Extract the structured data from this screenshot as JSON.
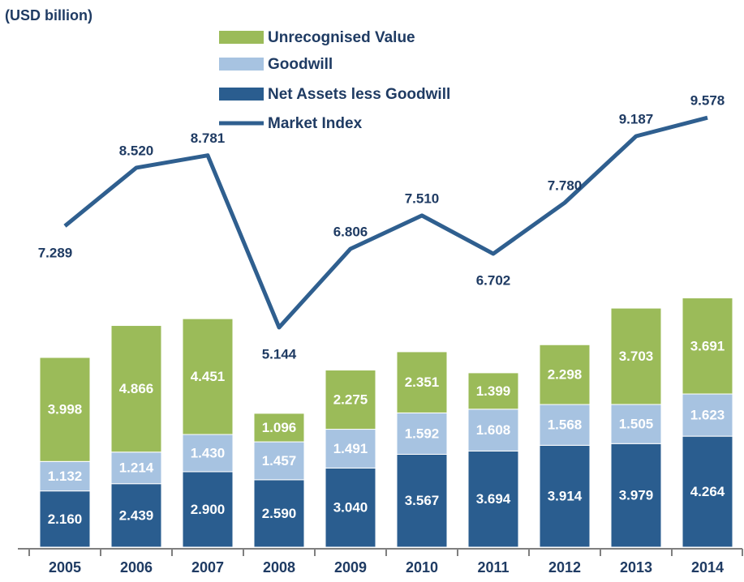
{
  "chart_data": {
    "type": "bar",
    "stacked": true,
    "subtitle": "(USD billion)",
    "categories": [
      "2005",
      "2006",
      "2007",
      "2008",
      "2009",
      "2010",
      "2011",
      "2012",
      "2013",
      "2014"
    ],
    "ylim": [
      0,
      20
    ],
    "y2lim": [
      0.5,
      11.5
    ],
    "series": [
      {
        "name": "Net Assets less Goodwill",
        "color": "#2a5d8f",
        "values": [
          2.16,
          2.439,
          2.9,
          2.59,
          3.04,
          3.567,
          3.694,
          3.914,
          3.979,
          4.264
        ],
        "value_labels": [
          "2.160",
          "2.439",
          "2.900",
          "2.590",
          "3.040",
          "3.567",
          "3.694",
          "3.914",
          "3.979",
          "4.264"
        ]
      },
      {
        "name": "Goodwill",
        "color": "#a7c3e1",
        "values": [
          1.132,
          1.214,
          1.43,
          1.457,
          1.491,
          1.592,
          1.608,
          1.568,
          1.505,
          1.623
        ],
        "value_labels": [
          "1.132",
          "1.214",
          "1.430",
          "1.457",
          "1.491",
          "1.592",
          "1.608",
          "1.568",
          "1.505",
          "1.623"
        ]
      },
      {
        "name": "Unrecognised Value",
        "color": "#9bbb59",
        "values": [
          3.998,
          4.866,
          4.451,
          1.096,
          2.275,
          2.351,
          1.399,
          2.298,
          3.703,
          3.691
        ],
        "value_labels": [
          "3.998",
          "4.866",
          "4.451",
          "1.096",
          "2.275",
          "2.351",
          "1.399",
          "2.298",
          "3.703",
          "3.691"
        ]
      },
      {
        "name": "Market Index",
        "type": "line",
        "axis": "y2",
        "color": "#2f5f8f",
        "values": [
          7.289,
          8.52,
          8.781,
          5.144,
          6.806,
          7.51,
          6.702,
          7.78,
          9.187,
          9.578
        ],
        "value_labels": [
          "7.289",
          "8.520",
          "8.781",
          "5.144",
          "6.806",
          "7.510",
          "6.702",
          "7.780",
          "9.187",
          "9.578"
        ]
      }
    ]
  }
}
